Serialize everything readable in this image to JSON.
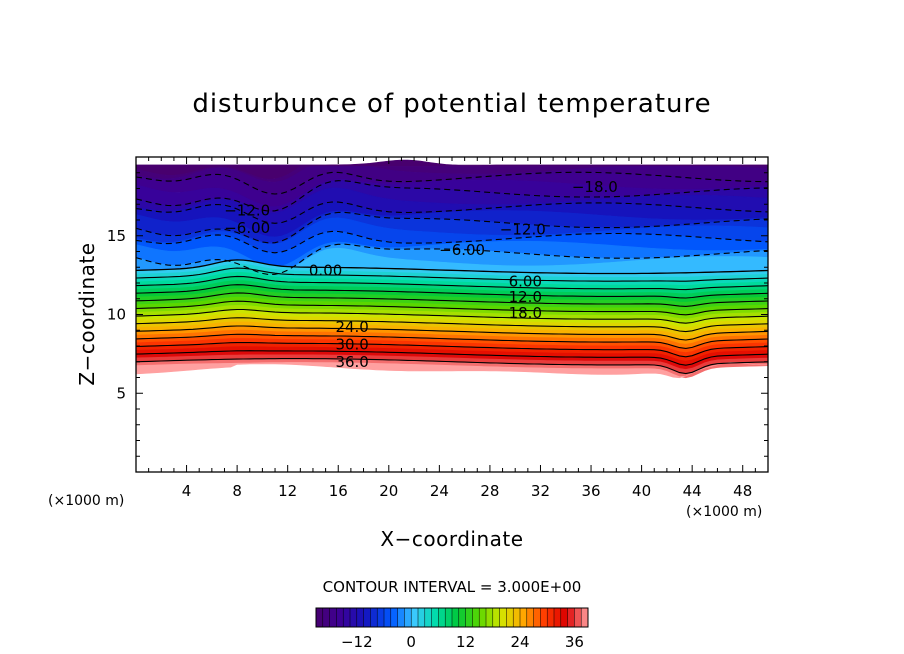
{
  "chart_data": {
    "type": "heatmap",
    "title": "disturbunce of potential temperature",
    "xlabel": "X−coordinate",
    "ylabel": "Z−coordinate",
    "x_unit_label": "(×1000 m)",
    "y_unit_label": "(×1000 m)",
    "xlim": [
      0,
      50
    ],
    "ylim": [
      0,
      20
    ],
    "x_ticks": [
      4,
      8,
      12,
      16,
      20,
      24,
      28,
      32,
      36,
      40,
      44,
      48
    ],
    "y_ticks": [
      5,
      10,
      15
    ],
    "x_tick_labels": [
      "4",
      "8",
      "12",
      "16",
      "20",
      "24",
      "28",
      "32",
      "36",
      "40",
      "44",
      "48"
    ],
    "y_tick_labels": [
      "5",
      "10",
      "15"
    ],
    "contour_interval_text": "CONTOUR INTERVAL = 3.000E+00",
    "contour_interval": 3.0,
    "colorbar": {
      "vmin": -21,
      "vmax": 39,
      "ticks": [
        -12,
        0,
        12,
        24,
        36
      ],
      "tick_labels": [
        "−12",
        "0",
        "12",
        "24",
        "36"
      ]
    },
    "contour_labels": [
      {
        "text": "−18.0",
        "x": 36.3,
        "z": 18.1
      },
      {
        "text": "−12.0",
        "x": 8.8,
        "z": 16.6
      },
      {
        "text": "−12.0",
        "x": 30.6,
        "z": 15.4
      },
      {
        "text": "−6.00",
        "x": 8.8,
        "z": 15.5
      },
      {
        "text": "−6.00",
        "x": 25.8,
        "z": 14.1
      },
      {
        "text": "0.00",
        "x": 15.0,
        "z": 12.8
      },
      {
        "text": "6.00",
        "x": 30.8,
        "z": 12.1
      },
      {
        "text": "12.0",
        "x": 30.8,
        "z": 11.1
      },
      {
        "text": "18.0",
        "x": 30.8,
        "z": 10.1
      },
      {
        "text": "24.0",
        "x": 17.1,
        "z": 9.2
      },
      {
        "text": "30.0",
        "x": 17.1,
        "z": 8.1
      },
      {
        "text": "36.0",
        "x": 17.1,
        "z": 7.0
      }
    ]
  }
}
